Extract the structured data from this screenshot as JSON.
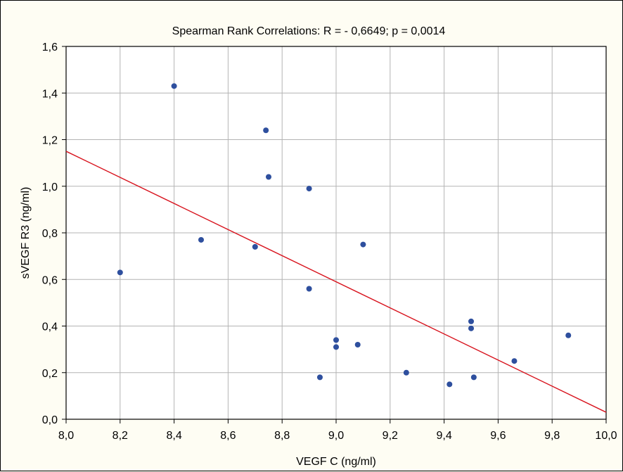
{
  "chart_data": {
    "type": "scatter",
    "title": "Spearman Rank Correlations: R = - 0,6649; p = 0,0014",
    "xlabel": "VEGF C (ng/ml)",
    "ylabel": "sVEGF R3 (ng/ml)",
    "xlim": [
      8.0,
      10.0
    ],
    "ylim": [
      0.0,
      1.6
    ],
    "grid": true,
    "x_ticks": [
      8.0,
      8.2,
      8.4,
      8.6,
      8.8,
      9.0,
      9.2,
      9.4,
      9.6,
      9.8,
      10.0
    ],
    "x_tick_labels": [
      "8,0",
      "8,2",
      "8,4",
      "8,6",
      "8,8",
      "9,0",
      "9,2",
      "9,4",
      "9,6",
      "9,8",
      "10,0"
    ],
    "y_ticks": [
      0.0,
      0.2,
      0.4,
      0.6,
      0.8,
      1.0,
      1.2,
      1.4,
      1.6
    ],
    "y_tick_labels": [
      "0,0",
      "0,2",
      "0,4",
      "0,6",
      "0,8",
      "1,0",
      "1,2",
      "1,4",
      "1,6"
    ],
    "points": [
      {
        "x": 8.2,
        "y": 0.63
      },
      {
        "x": 8.4,
        "y": 1.43
      },
      {
        "x": 8.5,
        "y": 0.77
      },
      {
        "x": 8.7,
        "y": 0.74
      },
      {
        "x": 8.74,
        "y": 1.24
      },
      {
        "x": 8.75,
        "y": 1.04
      },
      {
        "x": 8.9,
        "y": 0.99
      },
      {
        "x": 8.9,
        "y": 0.56
      },
      {
        "x": 8.94,
        "y": 0.18
      },
      {
        "x": 9.0,
        "y": 0.34
      },
      {
        "x": 9.0,
        "y": 0.31
      },
      {
        "x": 9.08,
        "y": 0.32
      },
      {
        "x": 9.1,
        "y": 0.75
      },
      {
        "x": 9.26,
        "y": 0.2
      },
      {
        "x": 9.42,
        "y": 0.15
      },
      {
        "x": 9.5,
        "y": 0.42
      },
      {
        "x": 9.5,
        "y": 0.39
      },
      {
        "x": 9.51,
        "y": 0.18
      },
      {
        "x": 9.66,
        "y": 0.25
      },
      {
        "x": 9.86,
        "y": 0.36
      }
    ],
    "fit_line": {
      "x": [
        8.0,
        10.0
      ],
      "y": [
        1.15,
        0.03
      ]
    },
    "colors": {
      "points": "#2e4f9e",
      "fit_line": "#d8141e",
      "grid": "#b4b4b4",
      "plot_bg": "#ffffff",
      "page_bg": "#fefdf3"
    }
  }
}
